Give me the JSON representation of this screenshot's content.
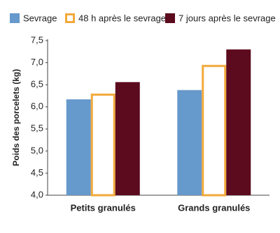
{
  "chart_data": {
    "type": "bar",
    "y_label": "Poids des porcelets (kg)",
    "categories": [
      "Petits granulés",
      "Grands granulés"
    ],
    "series": [
      {
        "name": "Sevrage",
        "color": "#6699cc",
        "edgecolor": "#6699cc",
        "values": [
          6.17,
          6.38
        ]
      },
      {
        "name": "48 h après le sevrage",
        "color": "#ffffff",
        "edgecolor": "#f2a93b",
        "values": [
          6.3,
          6.95
        ]
      },
      {
        "name": "7 jours après le sevrage",
        "color": "#5c0a1e",
        "edgecolor": "#5c0a1e",
        "values": [
          6.56,
          7.3
        ]
      }
    ],
    "ylim": [
      4.0,
      7.5
    ],
    "yticks": [
      {
        "value": 4.0,
        "label": "4,0"
      },
      {
        "value": 4.5,
        "label": "4,5"
      },
      {
        "value": 5.0,
        "label": "5,0"
      },
      {
        "value": 5.5,
        "label": "5,5"
      },
      {
        "value": 6.0,
        "label": "6,0"
      },
      {
        "value": 6.5,
        "label": "6,5"
      },
      {
        "value": 7.0,
        "label": "7,0"
      },
      {
        "value": 7.5,
        "label": "7,5"
      }
    ],
    "grid": false,
    "legend": "top"
  }
}
